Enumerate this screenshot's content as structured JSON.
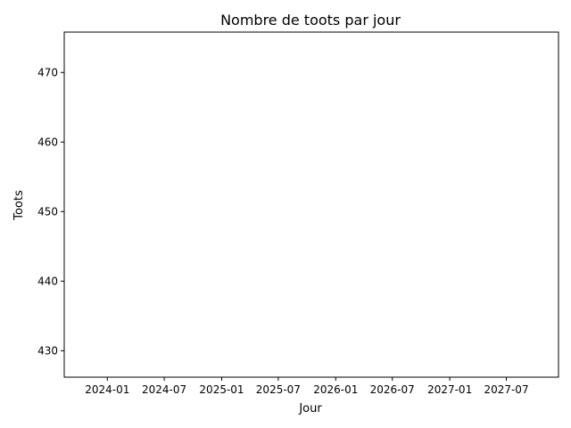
{
  "chart_data": {
    "type": "line",
    "title": "Nombre de toots par jour",
    "xlabel": "Jour",
    "ylabel": "Toots",
    "x_axis": {
      "scale": "date",
      "range": [
        "2023-08-16",
        "2027-12-15"
      ],
      "ticks": [
        "2024-01",
        "2024-07",
        "2025-01",
        "2025-07",
        "2026-01",
        "2026-07",
        "2027-01",
        "2027-07"
      ]
    },
    "y_axis": {
      "range": [
        426.2,
        475.8
      ],
      "ticks": [
        430,
        440,
        450,
        460,
        470
      ]
    },
    "series": [
      {
        "x": [],
        "y": []
      }
    ],
    "grid": false,
    "legend": "none"
  }
}
